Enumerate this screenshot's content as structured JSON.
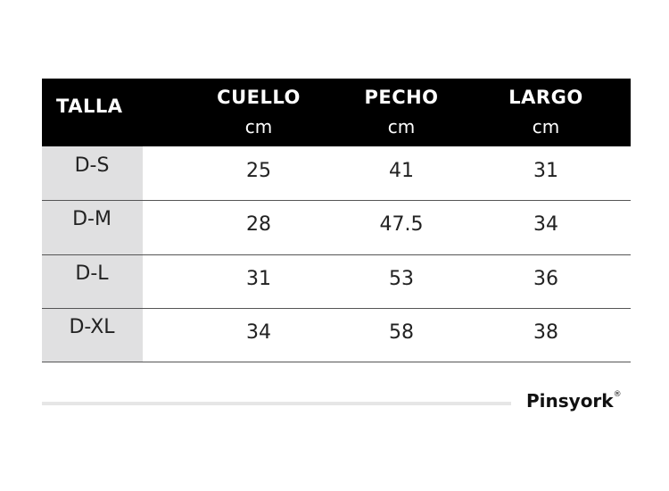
{
  "table": {
    "header": [
      {
        "label": "TALLA"
      },
      {
        "label": "CUELLO",
        "unit": "cm"
      },
      {
        "label": "PECHO",
        "unit": "cm"
      },
      {
        "label": "LARGO",
        "unit": "cm"
      }
    ],
    "rows": [
      [
        "D-S",
        25,
        41,
        31
      ],
      [
        "D-M",
        28,
        47.5,
        34
      ],
      [
        "D-L",
        31,
        53,
        36
      ],
      [
        "D-XL",
        34,
        58,
        38
      ]
    ]
  },
  "footer": {
    "brand": "Pinsyork",
    "mark": "®"
  }
}
